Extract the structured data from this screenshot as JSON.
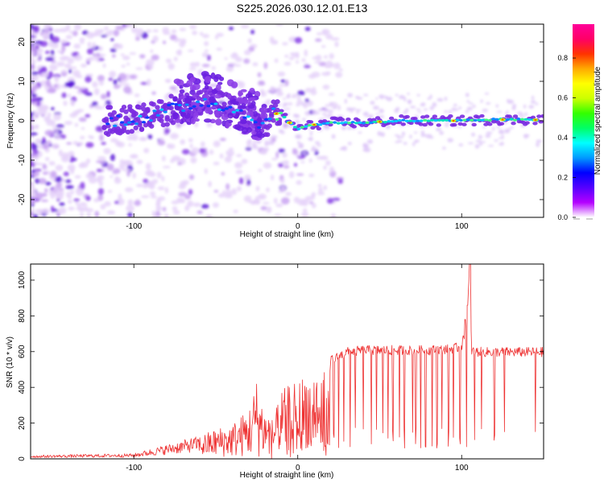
{
  "title": "S225.2026.030.12.01.E13",
  "colors": {
    "snr_line": "#ee3333",
    "spectro_core": "#1a8cff",
    "spectro_halo": "#7a2be0",
    "spectro_faint": "#d9b8f5"
  },
  "chart_data": [
    {
      "id": "spectrogram",
      "type": "heatmap",
      "title": "S225.2026.030.12.01.E13",
      "xlabel": "Height of straight line (km)",
      "ylabel": "Frequency (Hz)",
      "xlim": [
        -163,
        150
      ],
      "ylim": [
        -24.5,
        24.5
      ],
      "xticks": [
        -100,
        0,
        100
      ],
      "yticks": [
        -20,
        -10,
        0,
        10,
        20
      ],
      "colorbar": {
        "label": "Normalized spectral amplitude",
        "range": [
          0.0,
          0.97
        ],
        "ticks": [
          "0.0",
          "0.2",
          "0.4",
          "0.6",
          "0.8"
        ],
        "stops": [
          "#ffffff",
          "#b400ff",
          "#5500ff",
          "#0000ff",
          "#0099ff",
          "#00ffff",
          "#00ff66",
          "#33ff00",
          "#ccff00",
          "#ffff00",
          "#ffaa00",
          "#ff3300",
          "#ff0066",
          "#ff0099"
        ]
      },
      "ridge": [
        {
          "x": -115,
          "y": 0.0
        },
        {
          "x": -100,
          "y": 0.5
        },
        {
          "x": -90,
          "y": 0.8
        },
        {
          "x": -80,
          "y": 2.5
        },
        {
          "x": -70,
          "y": 3.5
        },
        {
          "x": -60,
          "y": 5.0
        },
        {
          "x": -50,
          "y": 4.5
        },
        {
          "x": -40,
          "y": 3.0
        },
        {
          "x": -30,
          "y": 1.0
        },
        {
          "x": -20,
          "y": -1.0
        },
        {
          "x": -15,
          "y": 2.0
        },
        {
          "x": -10,
          "y": 1.5
        },
        {
          "x": -5,
          "y": -0.5
        },
        {
          "x": 0,
          "y": -2.0
        },
        {
          "x": 5,
          "y": -1.5
        },
        {
          "x": 10,
          "y": -1.0
        },
        {
          "x": 20,
          "y": -0.5
        },
        {
          "x": 40,
          "y": -0.5
        },
        {
          "x": 60,
          "y": 0.0
        },
        {
          "x": 80,
          "y": 0.0
        },
        {
          "x": 100,
          "y": 0.0
        },
        {
          "x": 120,
          "y": 0.3
        },
        {
          "x": 150,
          "y": 0.2
        }
      ]
    },
    {
      "id": "snr",
      "type": "line",
      "xlabel": "Height of straight line (km)",
      "ylabel": "SNR (10 * v/v)",
      "xlim": [
        -163,
        150
      ],
      "ylim": [
        0,
        1090
      ],
      "xticks": [
        -100,
        0,
        100
      ],
      "yticks": [
        0,
        200,
        400,
        600,
        800,
        1000
      ],
      "series": [
        {
          "name": "SNR",
          "envelope": {
            "x": [
              -163,
              -100,
              -80,
              -60,
              -50,
              -40,
              -30,
              -25,
              -20,
              -15,
              -10,
              -5,
              0,
              10,
              20,
              30,
              40,
              60,
              80,
              95,
              100,
              103,
              105,
              106,
              110,
              130,
              150
            ],
            "y": [
              20,
              30,
              80,
              130,
              170,
              200,
              280,
              450,
              280,
              220,
              380,
              420,
              450,
              500,
              560,
              610,
              620,
              620,
              620,
              630,
              640,
              760,
              1090,
              620,
              610,
              610,
              610
            ]
          },
          "dropouts": [
            5,
            8,
            12,
            15,
            18,
            22,
            25,
            28,
            32,
            35,
            40,
            45,
            48,
            52,
            55,
            58,
            62,
            65,
            70,
            72,
            75,
            78,
            82,
            85,
            88,
            92,
            95,
            99,
            103,
            108,
            112,
            120,
            126,
            145
          ]
        }
      ]
    }
  ]
}
